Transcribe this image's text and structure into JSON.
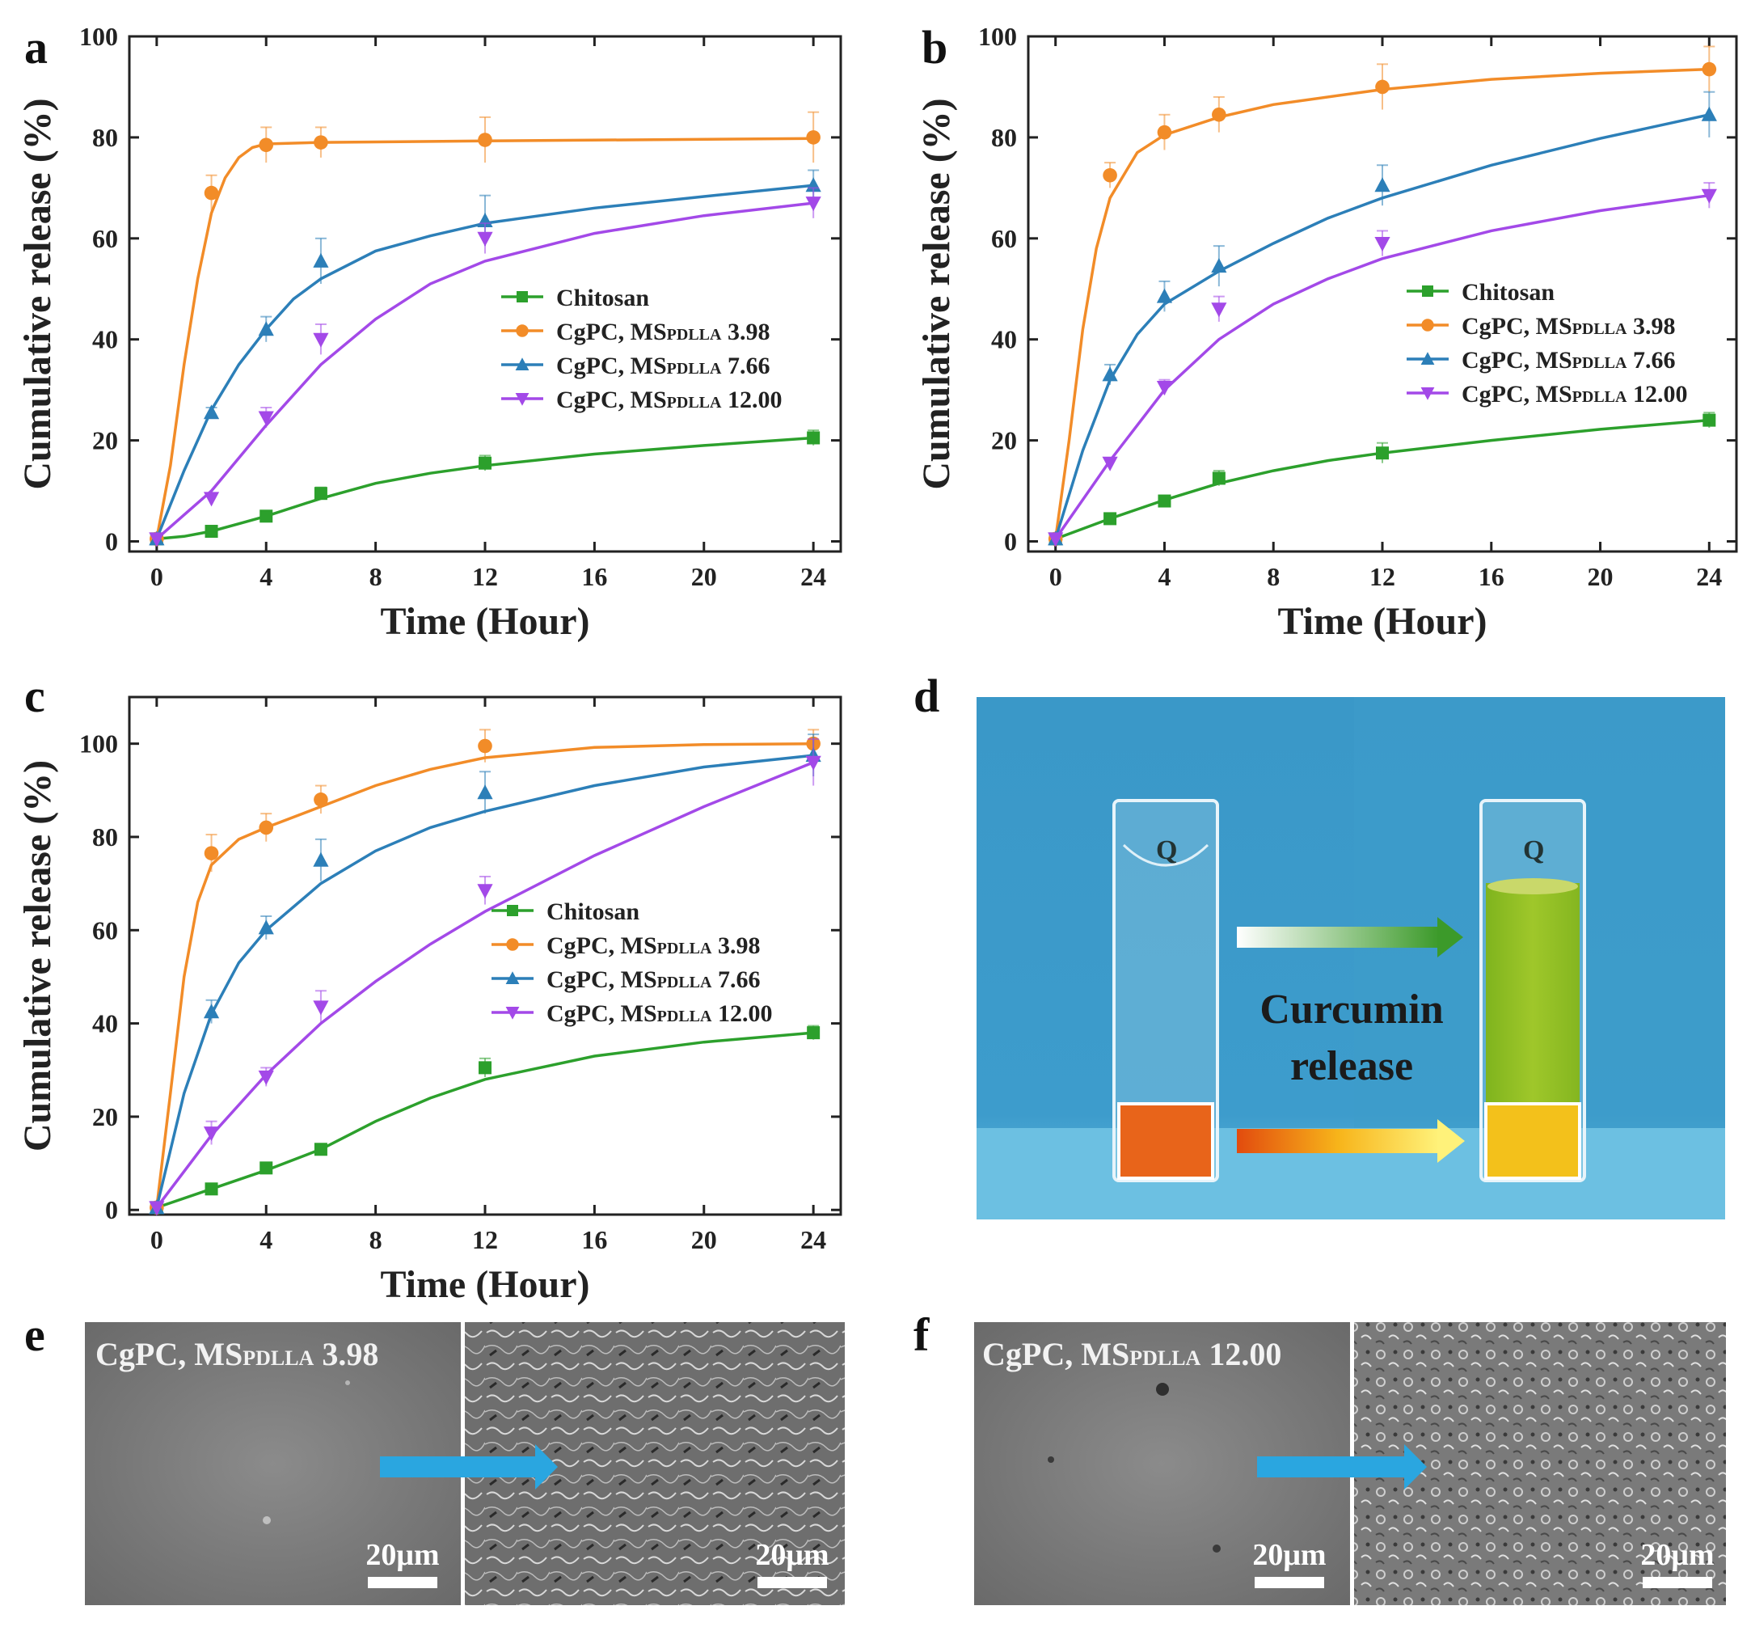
{
  "panel_letters": [
    "a",
    "b",
    "c",
    "d",
    "e",
    "f"
  ],
  "chart_data": [
    {
      "panel": "a",
      "type": "line",
      "xlabel": "Time (Hour)",
      "ylabel": "Cumulative release (%)",
      "xlim": [
        -1,
        25
      ],
      "ylim": [
        -2,
        100
      ],
      "xticks": [
        0,
        4,
        8,
        12,
        16,
        20,
        24
      ],
      "yticks": [
        0,
        20,
        40,
        60,
        80,
        100
      ],
      "legend_position": "center-right",
      "series": [
        {
          "name": "Chitosan",
          "color": "#2ca02c",
          "marker": "square",
          "x": [
            0,
            2,
            4,
            6,
            12,
            24
          ],
          "y": [
            0.5,
            2,
            5,
            9.5,
            15.5,
            20.5
          ],
          "err": [
            0.5,
            0.8,
            1,
            1.2,
            1.5,
            1.5
          ],
          "fit": [
            [
              0,
              0.5
            ],
            [
              1,
              1
            ],
            [
              2,
              2
            ],
            [
              3,
              3.5
            ],
            [
              4,
              5
            ],
            [
              6,
              8.5
            ],
            [
              8,
              11.5
            ],
            [
              10,
              13.5
            ],
            [
              12,
              15
            ],
            [
              16,
              17.3
            ],
            [
              20,
              19
            ],
            [
              24,
              20.5
            ]
          ]
        },
        {
          "name": "CgPC, MSPDLLA 3.98",
          "color": "#f28c28",
          "marker": "circle",
          "x": [
            0,
            2,
            4,
            6,
            12,
            24
          ],
          "y": [
            0.5,
            69,
            78.5,
            79,
            79.5,
            80
          ],
          "err": [
            0.5,
            3.5,
            3.5,
            3,
            4.5,
            5
          ],
          "fit": [
            [
              0,
              0.5
            ],
            [
              0.5,
              15
            ],
            [
              1,
              35
            ],
            [
              1.5,
              52
            ],
            [
              2,
              65
            ],
            [
              2.5,
              72
            ],
            [
              3,
              76
            ],
            [
              3.5,
              78
            ],
            [
              4,
              78.7
            ],
            [
              6,
              79
            ],
            [
              12,
              79.3
            ],
            [
              24,
              79.8
            ]
          ]
        },
        {
          "name": "CgPC, MSPDLLA 7.66",
          "color": "#2c7fb8",
          "marker": "triangle-up",
          "x": [
            0,
            2,
            4,
            6,
            12,
            24
          ],
          "y": [
            0.5,
            25.5,
            42,
            55.5,
            63.5,
            70.5
          ],
          "err": [
            0.5,
            1,
            2.5,
            4.5,
            5,
            3
          ],
          "fit": [
            [
              0,
              0.5
            ],
            [
              1,
              14
            ],
            [
              2,
              26
            ],
            [
              3,
              35
            ],
            [
              4,
              42
            ],
            [
              5,
              48
            ],
            [
              6,
              52
            ],
            [
              8,
              57.5
            ],
            [
              10,
              60.5
            ],
            [
              12,
              63
            ],
            [
              16,
              66
            ],
            [
              20,
              68.3
            ],
            [
              24,
              70.5
            ]
          ]
        },
        {
          "name": "CgPC, MSPDLLA 12.00",
          "color": "#a349e8",
          "marker": "triangle-down",
          "x": [
            0,
            2,
            4,
            6,
            12,
            24
          ],
          "y": [
            0.5,
            8.5,
            24.5,
            40,
            60,
            67
          ],
          "err": [
            0.5,
            1,
            2,
            3,
            3,
            3
          ],
          "fit": [
            [
              0,
              0.5
            ],
            [
              2,
              10
            ],
            [
              4,
              23
            ],
            [
              6,
              35
            ],
            [
              8,
              44
            ],
            [
              10,
              51
            ],
            [
              12,
              55.5
            ],
            [
              16,
              61
            ],
            [
              20,
              64.5
            ],
            [
              24,
              67
            ]
          ]
        }
      ]
    },
    {
      "panel": "b",
      "type": "line",
      "xlabel": "Time (Hour)",
      "ylabel": "Cumulative release (%)",
      "xlim": [
        -1,
        25
      ],
      "ylim": [
        -2,
        100
      ],
      "xticks": [
        0,
        4,
        8,
        12,
        16,
        20,
        24
      ],
      "yticks": [
        0,
        20,
        40,
        60,
        80,
        100
      ],
      "legend_position": "center-right",
      "series": [
        {
          "name": "Chitosan",
          "color": "#2ca02c",
          "marker": "square",
          "x": [
            0,
            2,
            4,
            6,
            12,
            24
          ],
          "y": [
            0.5,
            4.5,
            8,
            12.5,
            17.5,
            24
          ],
          "err": [
            0.5,
            0.8,
            1,
            1.5,
            2,
            1.5
          ],
          "fit": [
            [
              0,
              0.5
            ],
            [
              1,
              2.5
            ],
            [
              2,
              4.5
            ],
            [
              4,
              8.2
            ],
            [
              6,
              11.5
            ],
            [
              8,
              14
            ],
            [
              10,
              16
            ],
            [
              12,
              17.5
            ],
            [
              16,
              20
            ],
            [
              20,
              22.2
            ],
            [
              24,
              24
            ]
          ]
        },
        {
          "name": "CgPC, MSPDLLA 3.98",
          "color": "#f28c28",
          "marker": "circle",
          "x": [
            0,
            2,
            4,
            6,
            12,
            24
          ],
          "y": [
            0.5,
            72.5,
            81,
            84.5,
            90,
            93.5
          ],
          "err": [
            0.5,
            2.5,
            3.5,
            3.5,
            4.5,
            4.5
          ],
          "fit": [
            [
              0,
              0.5
            ],
            [
              0.5,
              20
            ],
            [
              1,
              42
            ],
            [
              1.5,
              58
            ],
            [
              2,
              68
            ],
            [
              3,
              77
            ],
            [
              4,
              80.5
            ],
            [
              6,
              84
            ],
            [
              8,
              86.5
            ],
            [
              12,
              89.5
            ],
            [
              16,
              91.5
            ],
            [
              20,
              92.7
            ],
            [
              24,
              93.5
            ]
          ]
        },
        {
          "name": "CgPC, MSPDLLA 7.66",
          "color": "#2c7fb8",
          "marker": "triangle-up",
          "x": [
            0,
            2,
            4,
            6,
            12,
            24
          ],
          "y": [
            0.5,
            33,
            48.5,
            54.5,
            70.5,
            84.5
          ],
          "err": [
            0.5,
            2,
            3,
            4,
            4,
            4.5
          ],
          "fit": [
            [
              0,
              0.5
            ],
            [
              1,
              18
            ],
            [
              2,
              32
            ],
            [
              3,
              41
            ],
            [
              4,
              47
            ],
            [
              6,
              53.5
            ],
            [
              8,
              59
            ],
            [
              10,
              64
            ],
            [
              12,
              68
            ],
            [
              16,
              74.5
            ],
            [
              20,
              79.8
            ],
            [
              24,
              84.5
            ]
          ]
        },
        {
          "name": "CgPC, MSPDLLA 12.00",
          "color": "#a349e8",
          "marker": "triangle-down",
          "x": [
            0,
            2,
            4,
            6,
            12,
            24
          ],
          "y": [
            0.5,
            15.5,
            30.5,
            46,
            59,
            68.5
          ],
          "err": [
            0.5,
            1,
            1.5,
            2.5,
            2.5,
            2.5
          ],
          "fit": [
            [
              0,
              0.5
            ],
            [
              2,
              16
            ],
            [
              4,
              30
            ],
            [
              6,
              40
            ],
            [
              8,
              47
            ],
            [
              10,
              52
            ],
            [
              12,
              56
            ],
            [
              16,
              61.5
            ],
            [
              20,
              65.5
            ],
            [
              24,
              68.5
            ]
          ]
        }
      ]
    },
    {
      "panel": "c",
      "type": "line",
      "xlabel": "Time (Hour)",
      "ylabel": "Cumulative release (%)",
      "xlim": [
        -1,
        25
      ],
      "ylim": [
        -1,
        110
      ],
      "xticks": [
        0,
        4,
        8,
        12,
        16,
        20,
        24
      ],
      "yticks": [
        0,
        20,
        40,
        60,
        80,
        100
      ],
      "legend_position": "center-right",
      "series": [
        {
          "name": "Chitosan",
          "color": "#2ca02c",
          "marker": "square",
          "x": [
            0,
            2,
            4,
            6,
            12,
            24
          ],
          "y": [
            0.5,
            4.5,
            9,
            13,
            30.5,
            38
          ],
          "err": [
            0.5,
            0.8,
            1,
            1,
            2,
            1.5
          ],
          "fit": [
            [
              0,
              0.5
            ],
            [
              2,
              4.5
            ],
            [
              4,
              8.5
            ],
            [
              6,
              13
            ],
            [
              8,
              19
            ],
            [
              10,
              24
            ],
            [
              12,
              28
            ],
            [
              16,
              33
            ],
            [
              20,
              36
            ],
            [
              24,
              38
            ]
          ]
        },
        {
          "name": "CgPC, MSPDLLA 3.98",
          "color": "#f28c28",
          "marker": "circle",
          "x": [
            0,
            2,
            4,
            6,
            12,
            24
          ],
          "y": [
            0.5,
            76.5,
            82,
            88,
            99.5,
            100
          ],
          "err": [
            0.5,
            4,
            3,
            3,
            3.5,
            3
          ],
          "fit": [
            [
              0,
              0.5
            ],
            [
              0.5,
              25
            ],
            [
              1,
              50
            ],
            [
              1.5,
              66
            ],
            [
              2,
              74
            ],
            [
              3,
              79.5
            ],
            [
              4,
              82
            ],
            [
              6,
              86.5
            ],
            [
              8,
              91
            ],
            [
              10,
              94.5
            ],
            [
              12,
              97
            ],
            [
              16,
              99.2
            ],
            [
              20,
              99.8
            ],
            [
              24,
              100
            ]
          ]
        },
        {
          "name": "CgPC, MSPDLLA 7.66",
          "color": "#2c7fb8",
          "marker": "triangle-up",
          "x": [
            0,
            2,
            4,
            6,
            12,
            24
          ],
          "y": [
            0.5,
            42.5,
            60.5,
            75,
            89.5,
            97.5
          ],
          "err": [
            0.5,
            2.5,
            2.5,
            4.5,
            4.5,
            4.5
          ],
          "fit": [
            [
              0,
              0.5
            ],
            [
              1,
              25
            ],
            [
              2,
              42
            ],
            [
              3,
              53
            ],
            [
              4,
              60
            ],
            [
              6,
              70
            ],
            [
              8,
              77
            ],
            [
              10,
              82
            ],
            [
              12,
              85.5
            ],
            [
              16,
              91
            ],
            [
              20,
              95
            ],
            [
              24,
              97.5
            ]
          ]
        },
        {
          "name": "CgPC, MSPDLLA 12.00",
          "color": "#a349e8",
          "marker": "triangle-down",
          "x": [
            0,
            2,
            4,
            6,
            12,
            24
          ],
          "y": [
            0.5,
            16.5,
            28.5,
            43.5,
            68.5,
            96
          ],
          "err": [
            0.5,
            2.5,
            2,
            3.5,
            3,
            5
          ],
          "fit": [
            [
              0,
              0.5
            ],
            [
              2,
              16
            ],
            [
              4,
              29
            ],
            [
              6,
              40
            ],
            [
              8,
              49
            ],
            [
              10,
              57
            ],
            [
              12,
              64
            ],
            [
              16,
              76
            ],
            [
              20,
              86.5
            ],
            [
              24,
              96
            ]
          ]
        }
      ]
    }
  ],
  "legend": {
    "entries": [
      {
        "name": "Chitosan",
        "sub": "",
        "value": ""
      },
      {
        "name": "CgPC, MS",
        "sub": "PDLLA",
        "value": " 3.98"
      },
      {
        "name": "CgPC, MS",
        "sub": "PDLLA",
        "value": " 7.66"
      },
      {
        "name": "CgPC, MS",
        "sub": "PDLLA",
        "value": " 12.00"
      }
    ]
  },
  "photo_d": {
    "label_line1": "Curcumin",
    "label_line2": "release",
    "cuvette_mark": "Q"
  },
  "sem_e": {
    "caption_main": "CgPC, MS",
    "caption_sub": "PDLLA",
    "caption_value": " 3.98",
    "scale_label": "20μm"
  },
  "sem_f": {
    "caption_main": "CgPC, MS",
    "caption_sub": "PDLLA",
    "caption_value": " 12.00",
    "scale_label": "20μm"
  }
}
